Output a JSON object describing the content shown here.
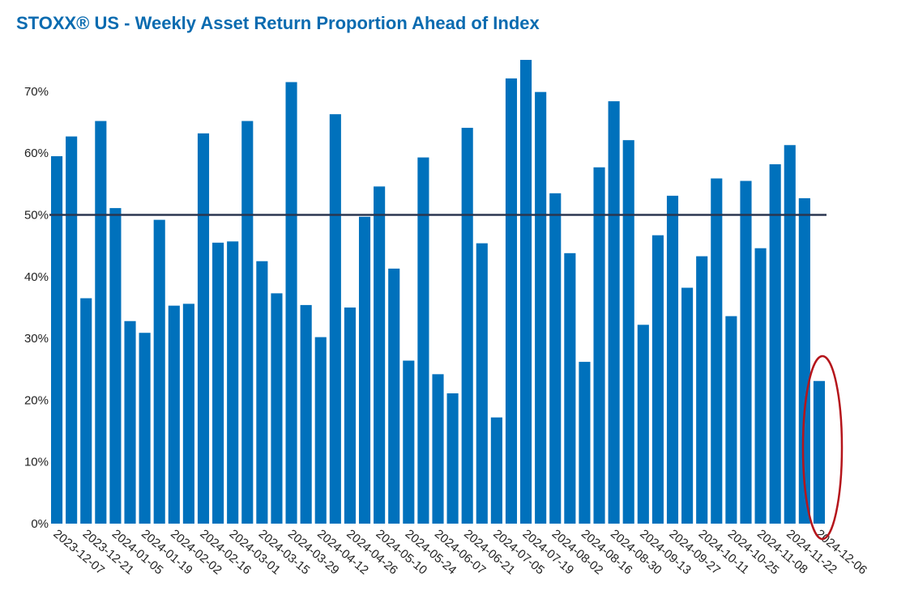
{
  "chart_data": {
    "type": "bar",
    "title": "STOXX® US - Weekly Asset Return Proportion Ahead of Index",
    "categories": [
      "2023-12-07",
      null,
      "2023-12-21",
      null,
      "2024-01-05",
      null,
      "2024-01-19",
      null,
      "2024-02-02",
      null,
      "2024-02-16",
      null,
      "2024-03-01",
      null,
      "2024-03-15",
      null,
      "2024-03-29",
      null,
      "2024-04-12",
      null,
      "2024-04-26",
      null,
      "2024-05-10",
      null,
      "2024-05-24",
      null,
      "2024-06-07",
      null,
      "2024-06-21",
      null,
      "2024-07-05",
      null,
      "2024-07-19",
      null,
      "2024-08-02",
      null,
      "2024-08-16",
      null,
      "2024-08-30",
      null,
      "2024-09-13",
      null,
      "2024-09-27",
      null,
      "2024-10-11",
      null,
      "2024-10-25",
      null,
      "2024-11-08",
      null,
      "2024-11-22",
      null,
      "2024-12-06"
    ],
    "values": [
      59.5,
      62.7,
      36.5,
      65.2,
      51.1,
      32.8,
      30.9,
      49.2,
      35.3,
      35.6,
      63.2,
      45.5,
      45.7,
      65.2,
      42.5,
      37.3,
      71.5,
      35.4,
      30.2,
      66.3,
      35.0,
      49.7,
      54.6,
      41.3,
      26.4,
      59.3,
      24.2,
      21.1,
      64.1,
      45.4,
      17.2,
      72.1,
      75.1,
      69.9,
      53.5,
      43.8,
      26.2,
      57.7,
      68.4,
      62.1,
      32.2,
      46.7,
      53.1,
      38.2,
      43.3,
      55.9,
      33.6,
      55.5,
      44.6,
      58.2,
      61.3,
      52.7,
      23.1
    ],
    "color": "#0071bc",
    "reference_line": 50,
    "ylim": [
      0,
      78
    ],
    "yticks": [
      {
        "value": 0,
        "label": "0%"
      },
      {
        "value": 10,
        "label": "10%"
      },
      {
        "value": 20,
        "label": "20%"
      },
      {
        "value": 30,
        "label": "30%"
      },
      {
        "value": 40,
        "label": "40%"
      },
      {
        "value": 50,
        "label": "50%"
      },
      {
        "value": 60,
        "label": "60%"
      },
      {
        "value": 70,
        "label": "70%"
      }
    ],
    "grid": false
  }
}
